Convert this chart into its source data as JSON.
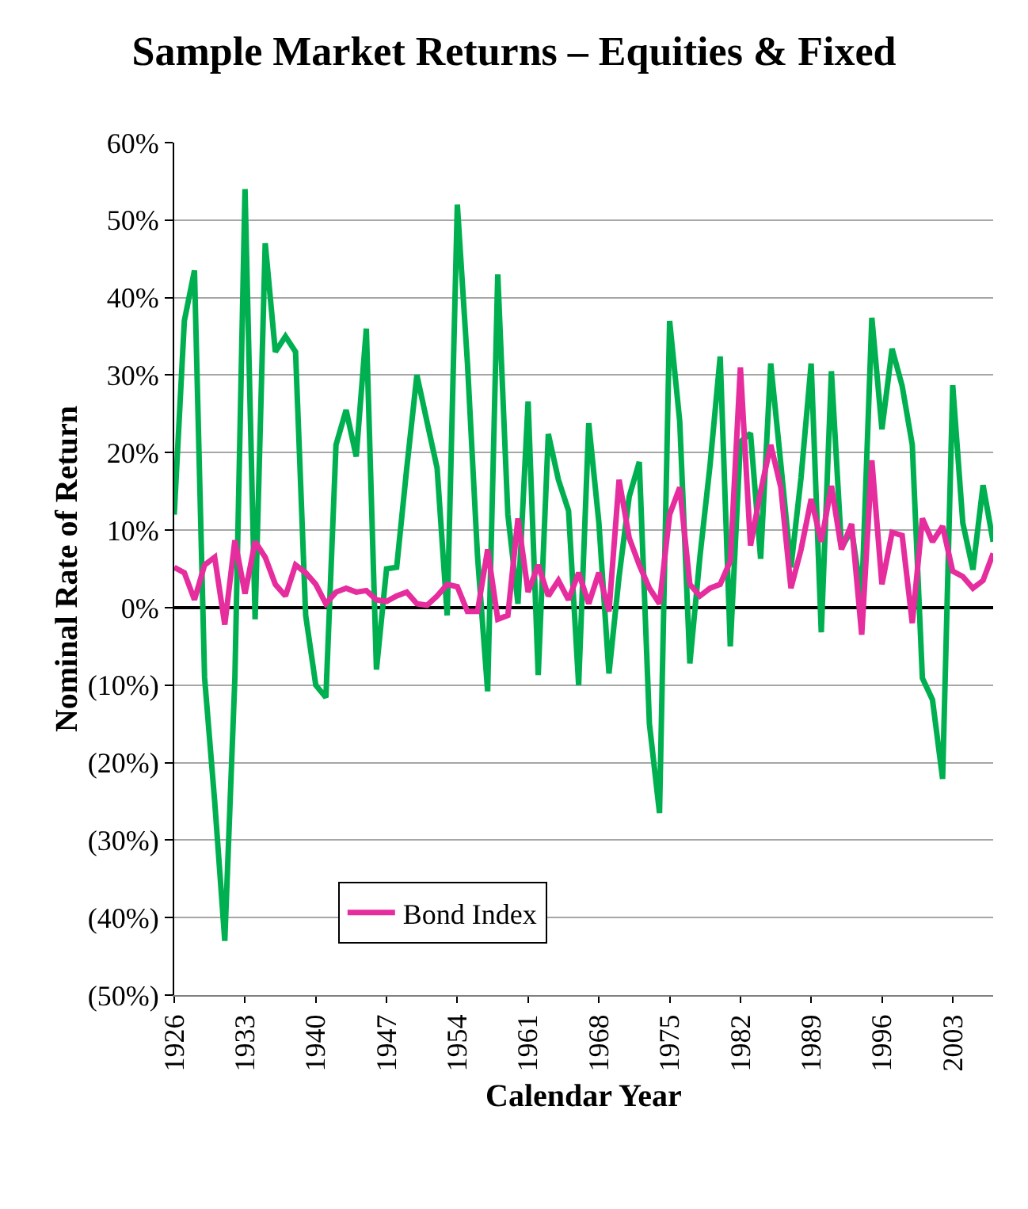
{
  "chart_data": {
    "type": "line",
    "title": "Sample Market Returns – Equities & Fixed",
    "xlabel": "Calendar Year",
    "ylabel": "Nominal Rate of Return",
    "x": [
      1926,
      1927,
      1928,
      1929,
      1930,
      1931,
      1932,
      1933,
      1934,
      1935,
      1936,
      1937,
      1938,
      1939,
      1940,
      1941,
      1942,
      1943,
      1944,
      1945,
      1946,
      1947,
      1948,
      1949,
      1950,
      1951,
      1952,
      1953,
      1954,
      1955,
      1956,
      1957,
      1958,
      1959,
      1960,
      1961,
      1962,
      1963,
      1964,
      1965,
      1966,
      1967,
      1968,
      1969,
      1970,
      1971,
      1972,
      1973,
      1974,
      1975,
      1976,
      1977,
      1978,
      1979,
      1980,
      1981,
      1982,
      1983,
      1984,
      1985,
      1986,
      1987,
      1988,
      1989,
      1990,
      1991,
      1992,
      1993,
      1994,
      1995,
      1996,
      1997,
      1998,
      1999,
      2000,
      2001,
      2002,
      2003,
      2004,
      2005,
      2006,
      2007
    ],
    "series": [
      {
        "color": "#00b050",
        "values": [
          12,
          37,
          43.5,
          -9,
          -25,
          -43,
          -9,
          54,
          -1.5,
          47,
          33,
          35,
          33,
          -1,
          -10,
          -11.6,
          21,
          25.5,
          19.5,
          36,
          -8,
          5,
          5.2,
          18,
          30,
          24,
          18,
          -1,
          52,
          31.6,
          6.6,
          -10.8,
          43,
          12,
          0.5,
          26.6,
          -8.7,
          22.4,
          16.5,
          12.5,
          -10,
          23.8,
          11,
          -8.5,
          4,
          14.3,
          18.8,
          -15,
          -26.5,
          37,
          24,
          -7.2,
          6.6,
          18.4,
          32.4,
          -5,
          21.4,
          22.5,
          6.3,
          31.5,
          18.5,
          5.2,
          16.8,
          31.5,
          -3.2,
          30.5,
          7.7,
          10,
          1.3,
          37.4,
          23,
          33.4,
          28.6,
          21,
          -9.1,
          -11.9,
          -22.1,
          28.7,
          10.9,
          4.9,
          15.8,
          8.5
        ]
      },
      {
        "name": "Bond Index",
        "color": "#e62d9e",
        "values": [
          5.2,
          4.5,
          1,
          5.5,
          6.5,
          -2.2,
          8.7,
          1.8,
          8.5,
          6.5,
          3,
          1.5,
          5.5,
          4.5,
          3,
          0.5,
          2,
          2.5,
          2,
          2.2,
          1,
          0.8,
          1.5,
          2,
          0.5,
          0.3,
          1.5,
          3,
          2.7,
          -0.5,
          -0.5,
          7.5,
          -1.5,
          -1,
          11.5,
          2,
          5.5,
          1.5,
          3.5,
          1,
          4.5,
          0.5,
          4.5,
          -0.5,
          16.5,
          9,
          5.5,
          2.5,
          0.5,
          12,
          15.5,
          3,
          1.5,
          2.5,
          3,
          6,
          31,
          8,
          15,
          21,
          15.5,
          2.5,
          7.5,
          14,
          8.5,
          15.7,
          7.5,
          10.8,
          -3.5,
          19,
          3,
          9.7,
          9.3,
          -2,
          11.5,
          8.5,
          10.5,
          4.7,
          4,
          2.5,
          3.5,
          7
        ]
      }
    ],
    "xlim": [
      1926,
      2007
    ],
    "xticks": [
      1926,
      1933,
      1940,
      1947,
      1954,
      1961,
      1968,
      1975,
      1982,
      1989,
      1996,
      2003
    ],
    "ylim": [
      -50,
      60
    ],
    "yticks": [
      {
        "value": -50,
        "label": "(50%)"
      },
      {
        "value": -40,
        "label": "(40%)"
      },
      {
        "value": -30,
        "label": "(30%)"
      },
      {
        "value": -20,
        "label": "(20%)"
      },
      {
        "value": -10,
        "label": "(10%)"
      },
      {
        "value": 0,
        "label": "0%"
      },
      {
        "value": 10,
        "label": "10%"
      },
      {
        "value": 20,
        "label": "20%"
      },
      {
        "value": 30,
        "label": "30%"
      },
      {
        "value": 40,
        "label": "40%"
      },
      {
        "value": 50,
        "label": "50%"
      },
      {
        "value": 60,
        "label": "60%"
      }
    ],
    "grid": "y",
    "legend": "bottom left",
    "marker": "none",
    "line_style": "solid"
  }
}
